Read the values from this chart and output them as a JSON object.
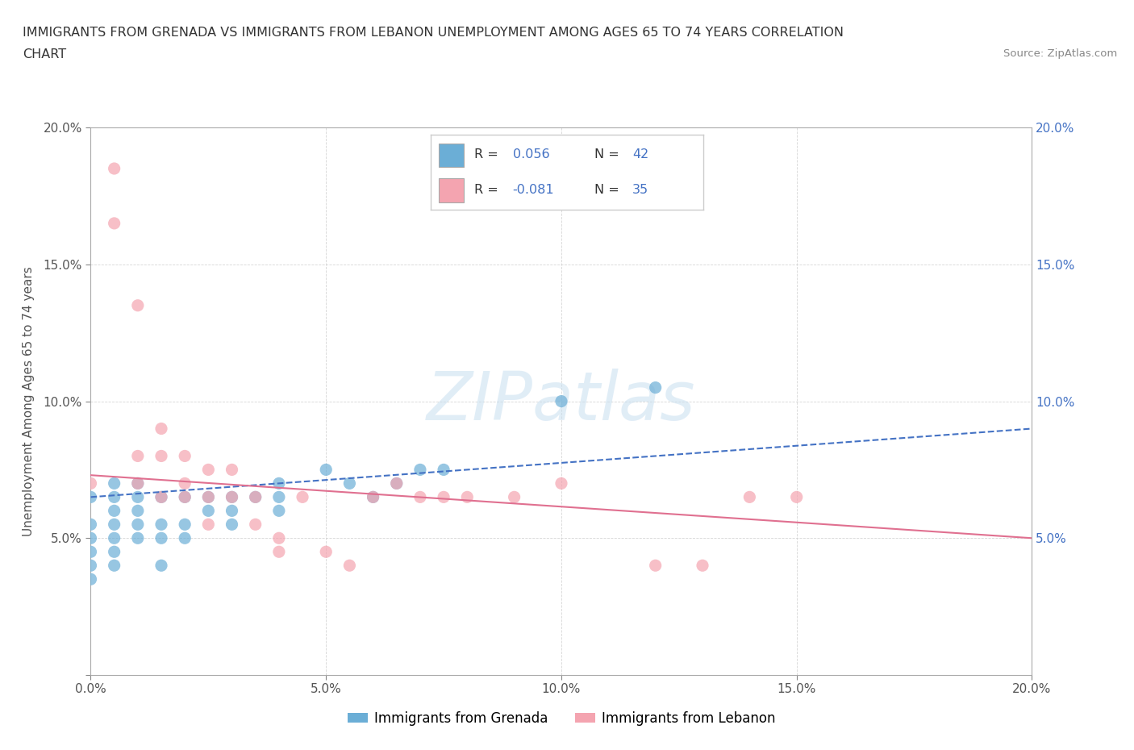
{
  "title_line1": "IMMIGRANTS FROM GRENADA VS IMMIGRANTS FROM LEBANON UNEMPLOYMENT AMONG AGES 65 TO 74 YEARS CORRELATION",
  "title_line2": "CHART",
  "source": "Source: ZipAtlas.com",
  "ylabel": "Unemployment Among Ages 65 to 74 years",
  "xlim": [
    0.0,
    0.2
  ],
  "ylim": [
    0.0,
    0.2
  ],
  "xticks": [
    0.0,
    0.05,
    0.1,
    0.15,
    0.2
  ],
  "yticks": [
    0.0,
    0.05,
    0.1,
    0.15,
    0.2
  ],
  "xticklabels": [
    "0.0%",
    "5.0%",
    "10.0%",
    "15.0%",
    "20.0%"
  ],
  "ylabels_left": [
    "",
    "5.0%",
    "10.0%",
    "15.0%",
    "20.0%"
  ],
  "ylabels_right": [
    "",
    "5.0%",
    "10.0%",
    "15.0%",
    "20.0%"
  ],
  "grenada_color": "#6baed6",
  "lebanon_color": "#f4a4b0",
  "grenada_line_color": "#4472c4",
  "lebanon_line_color": "#e07090",
  "right_label_color": "#4472c4",
  "grenada_R": 0.056,
  "grenada_N": 42,
  "lebanon_R": -0.081,
  "lebanon_N": 35,
  "grenada_x": [
    0.0,
    0.0,
    0.0,
    0.0,
    0.0,
    0.0,
    0.005,
    0.005,
    0.005,
    0.005,
    0.005,
    0.005,
    0.005,
    0.01,
    0.01,
    0.01,
    0.01,
    0.01,
    0.015,
    0.015,
    0.015,
    0.015,
    0.02,
    0.02,
    0.02,
    0.025,
    0.025,
    0.03,
    0.03,
    0.03,
    0.035,
    0.04,
    0.04,
    0.04,
    0.05,
    0.055,
    0.06,
    0.065,
    0.07,
    0.075,
    0.1,
    0.12
  ],
  "grenada_y": [
    0.065,
    0.055,
    0.05,
    0.045,
    0.04,
    0.035,
    0.07,
    0.065,
    0.06,
    0.055,
    0.05,
    0.045,
    0.04,
    0.07,
    0.065,
    0.06,
    0.055,
    0.05,
    0.065,
    0.055,
    0.05,
    0.04,
    0.065,
    0.055,
    0.05,
    0.065,
    0.06,
    0.065,
    0.06,
    0.055,
    0.065,
    0.07,
    0.065,
    0.06,
    0.075,
    0.07,
    0.065,
    0.07,
    0.075,
    0.075,
    0.1,
    0.105
  ],
  "lebanon_x": [
    0.0,
    0.005,
    0.005,
    0.01,
    0.01,
    0.01,
    0.015,
    0.015,
    0.015,
    0.02,
    0.02,
    0.02,
    0.025,
    0.025,
    0.025,
    0.03,
    0.03,
    0.035,
    0.035,
    0.04,
    0.04,
    0.045,
    0.05,
    0.055,
    0.06,
    0.065,
    0.07,
    0.075,
    0.08,
    0.09,
    0.1,
    0.12,
    0.13,
    0.14,
    0.15
  ],
  "lebanon_y": [
    0.07,
    0.185,
    0.165,
    0.135,
    0.08,
    0.07,
    0.09,
    0.08,
    0.065,
    0.08,
    0.07,
    0.065,
    0.075,
    0.065,
    0.055,
    0.075,
    0.065,
    0.065,
    0.055,
    0.05,
    0.045,
    0.065,
    0.045,
    0.04,
    0.065,
    0.07,
    0.065,
    0.065,
    0.065,
    0.065,
    0.07,
    0.04,
    0.04,
    0.065,
    0.065
  ],
  "grenada_trend_x": [
    0.0,
    0.2
  ],
  "grenada_trend_y": [
    0.065,
    0.09
  ],
  "lebanon_trend_x": [
    0.0,
    0.2
  ],
  "lebanon_trend_y": [
    0.073,
    0.05
  ]
}
